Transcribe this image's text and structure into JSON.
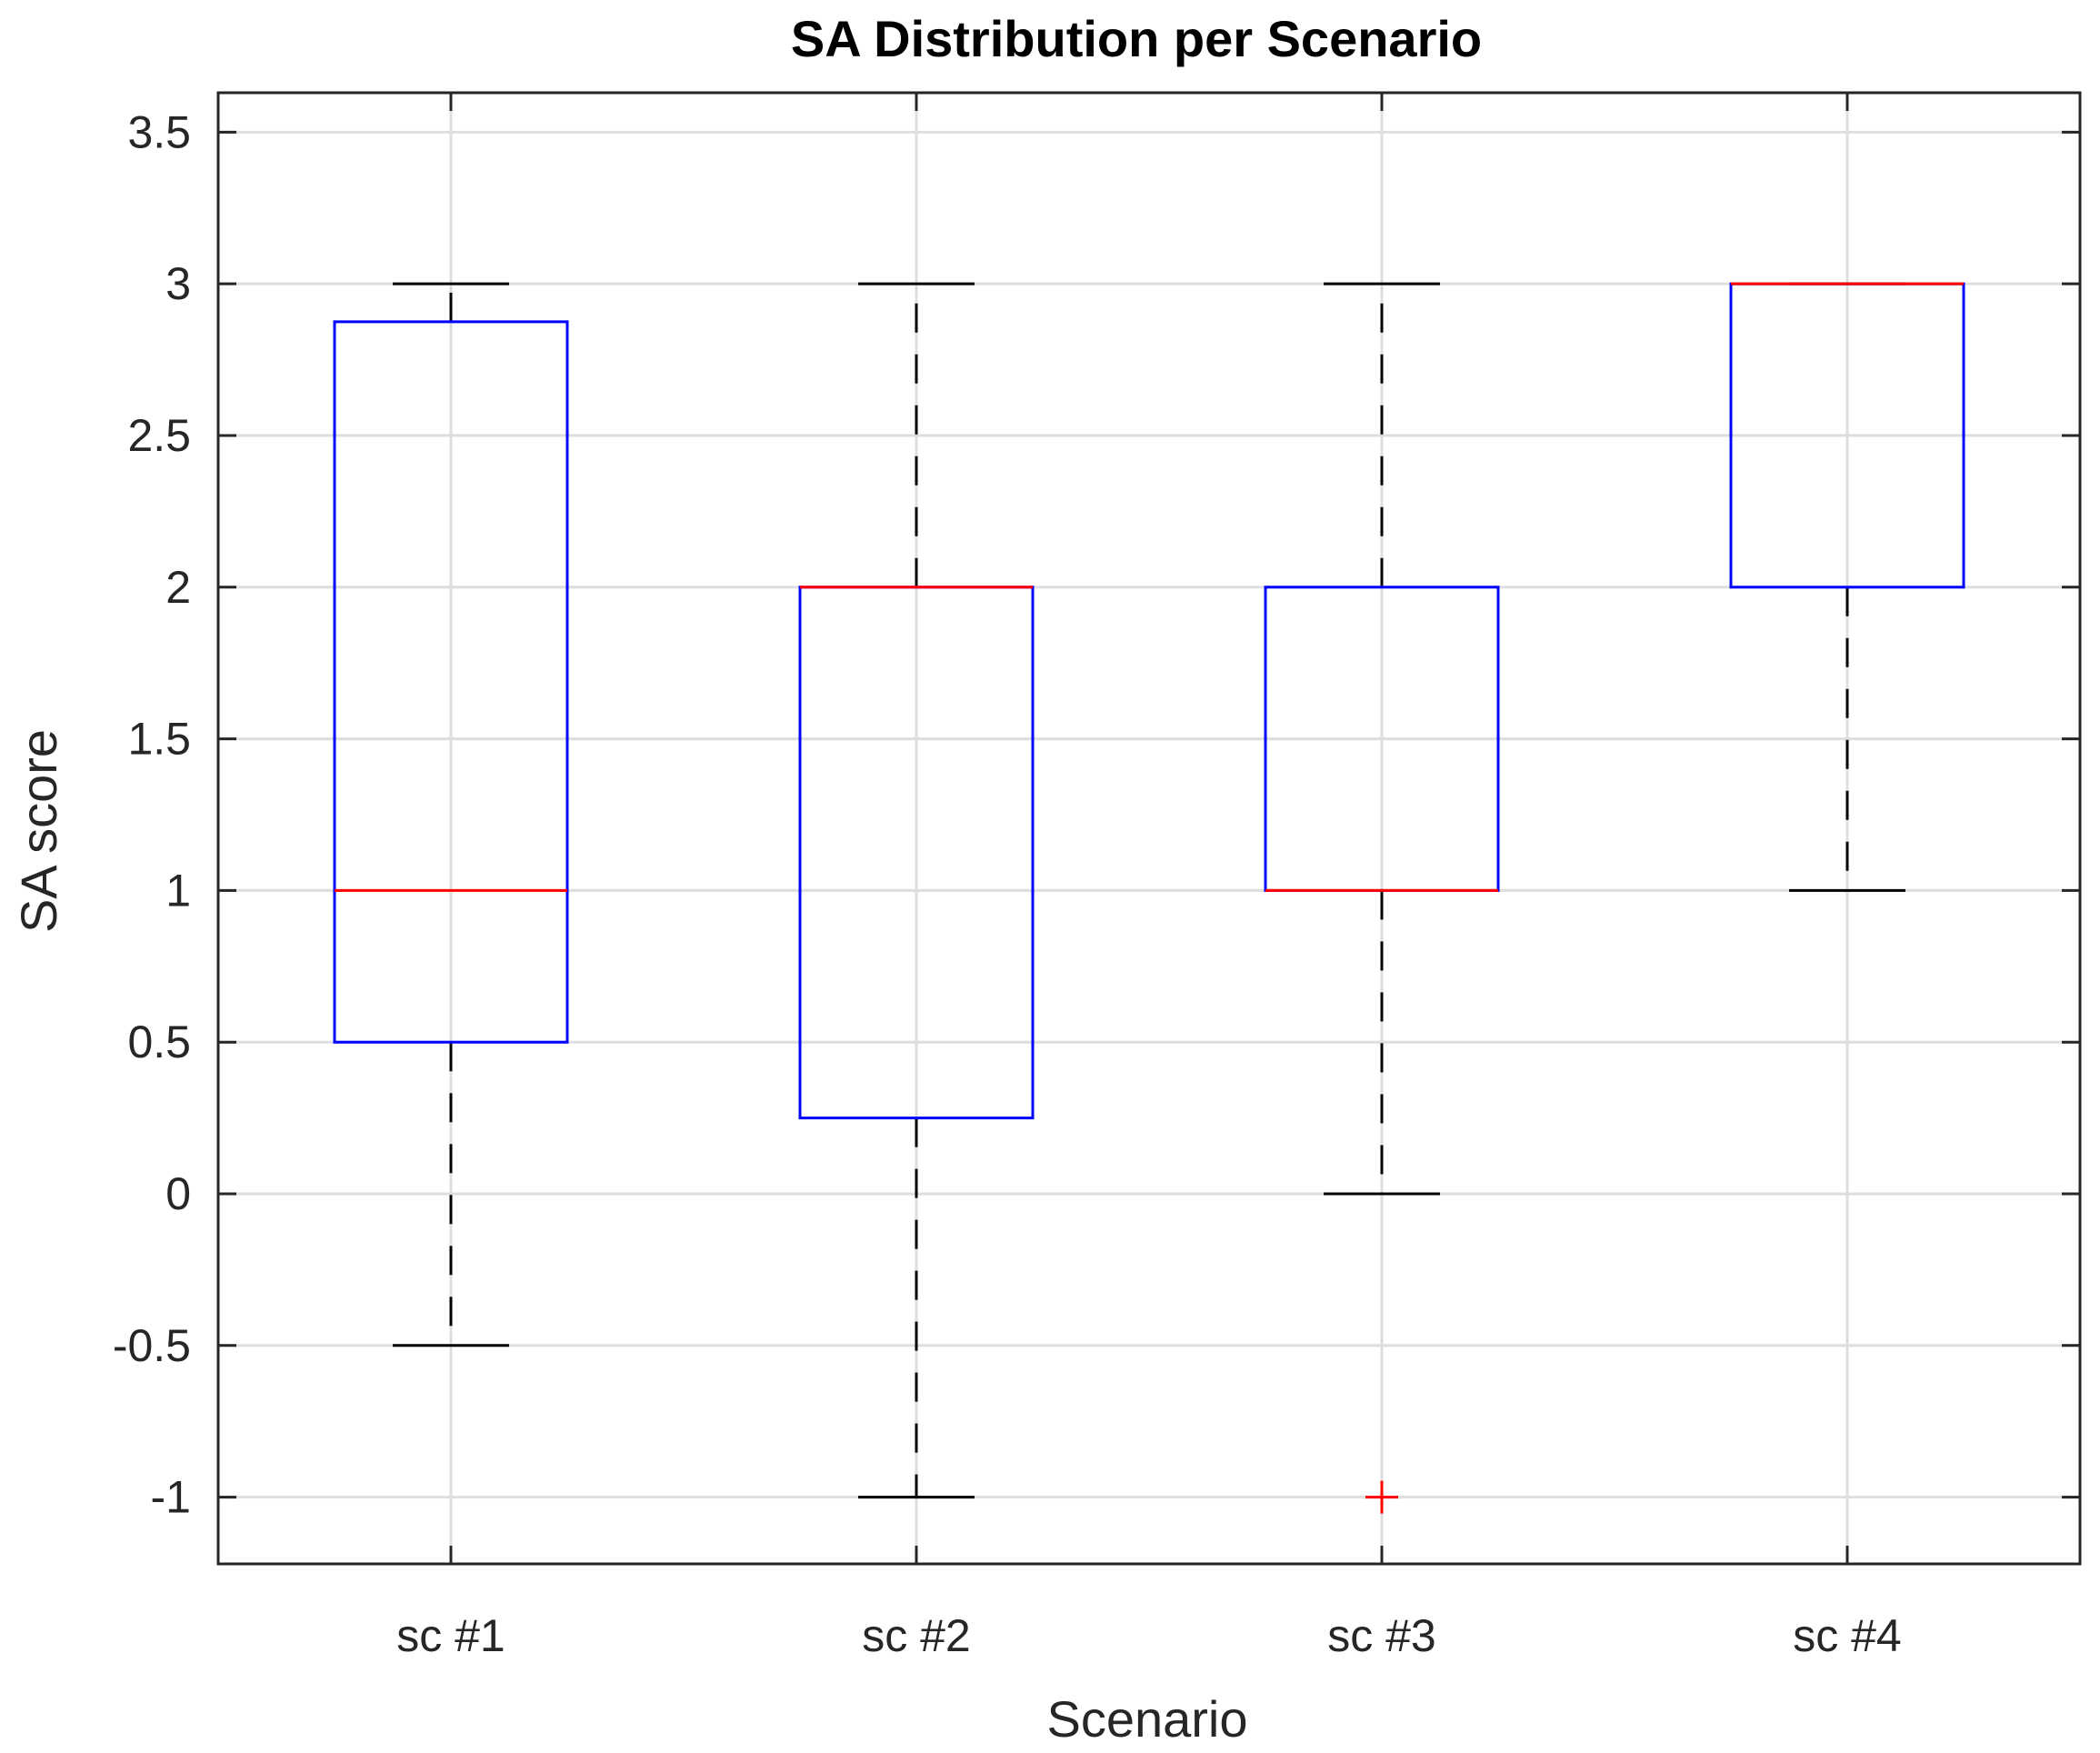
{
  "chart_data": {
    "type": "boxplot",
    "title": "SA Distribution per Scenario",
    "xlabel": "Scenario",
    "ylabel": "SA score",
    "categories": [
      "sc #1",
      "sc #2",
      "sc #3",
      "sc #4"
    ],
    "ylim": [
      -1.22,
      3.63
    ],
    "yticks": [
      -1,
      -0.5,
      0,
      0.5,
      1,
      1.5,
      2,
      2.5,
      3,
      3.5
    ],
    "ytick_labels": [
      "-1",
      "-0.5",
      "0",
      "0.5",
      "1",
      "1.5",
      "2",
      "2.5",
      "3",
      "3.5"
    ],
    "grid": true,
    "boxes": [
      {
        "category": "sc #1",
        "whisker_low": -0.5,
        "q1": 0.5,
        "median": 1,
        "q3": 2.875,
        "whisker_high": 3,
        "outliers": []
      },
      {
        "category": "sc #2",
        "whisker_low": -1,
        "q1": 0.25,
        "median": 2,
        "q3": 2,
        "whisker_high": 3,
        "outliers": []
      },
      {
        "category": "sc #3",
        "whisker_low": 0,
        "q1": 1,
        "median": 1,
        "q3": 2,
        "whisker_high": 3,
        "outliers": [
          -1
        ]
      },
      {
        "category": "sc #4",
        "whisker_low": 1,
        "q1": 2,
        "median": 3,
        "q3": 3,
        "whisker_high": 3,
        "outliers": []
      }
    ],
    "colors": {
      "box": "#0000ff",
      "median": "#ff0000",
      "whisker": "#000000",
      "outlier": "#ff0000",
      "grid": "#dedede",
      "axis": "#262626"
    }
  }
}
